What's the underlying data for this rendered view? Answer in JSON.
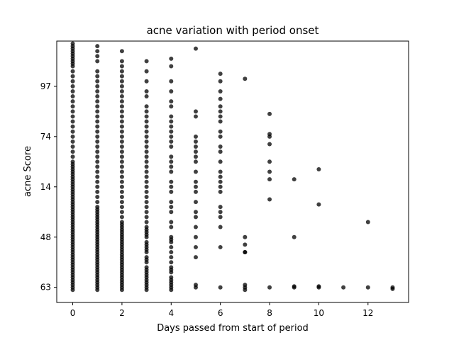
{
  "chart_data": {
    "type": "scatter",
    "title": "acne variation with period onset",
    "xlabel": "Days passed from start of period",
    "ylabel": "acne Score",
    "xlim": [
      -0.65,
      13.65
    ],
    "x_ticks": [
      0,
      2,
      4,
      6,
      8,
      10,
      12
    ],
    "x_tick_labels": [
      "0",
      "2",
      "4",
      "6",
      "8",
      "10",
      "12"
    ],
    "y_range_label_index": [
      -0.3,
      4.9
    ],
    "y_tick_labels": [
      "63",
      "48",
      "14",
      "74",
      "97"
    ],
    "y_tick_positions": [
      0,
      1,
      2,
      3,
      4
    ],
    "grid": false,
    "marker_color": "#000000",
    "marker_opacity": 0.75,
    "series": [
      {
        "x": [
          0,
          0,
          0,
          0,
          0,
          0,
          0,
          0,
          0,
          0,
          0,
          0,
          0,
          0,
          0,
          0,
          0,
          0,
          0,
          0,
          0,
          0,
          0,
          0,
          0,
          0,
          0,
          0,
          0,
          0,
          0,
          0,
          0,
          0,
          0,
          0,
          0,
          0,
          0,
          0,
          0,
          0,
          0,
          0,
          0,
          0,
          0,
          0,
          0,
          0,
          0,
          0,
          0,
          0,
          0,
          0,
          0,
          0,
          0,
          0,
          0,
          0,
          0,
          0,
          0,
          0,
          0,
          0,
          0,
          0,
          0,
          0,
          0,
          0,
          0,
          0,
          0,
          0,
          0,
          0,
          1,
          1,
          1,
          1,
          1,
          1,
          1,
          1,
          1,
          1,
          1,
          1,
          1,
          1,
          1,
          1,
          1,
          1,
          1,
          1,
          1,
          1,
          1,
          1,
          1,
          1,
          1,
          1,
          1,
          1,
          1,
          1,
          1,
          1,
          1,
          1,
          1,
          1,
          1,
          1,
          1,
          1,
          1,
          1,
          1,
          1,
          1,
          1,
          1,
          1,
          1,
          1,
          1,
          1,
          1,
          1,
          1,
          1,
          1,
          1,
          1,
          1,
          1,
          1,
          1,
          2,
          2,
          2,
          2,
          2,
          2,
          2,
          2,
          2,
          2,
          2,
          2,
          2,
          2,
          2,
          2,
          2,
          2,
          2,
          2,
          2,
          2,
          2,
          2,
          2,
          2,
          2,
          2,
          2,
          2,
          2,
          2,
          2,
          2,
          2,
          2,
          2,
          2,
          2,
          2,
          2,
          2,
          2,
          2,
          2,
          2,
          2,
          2,
          2,
          2,
          2,
          2,
          2,
          2,
          2,
          2,
          2,
          2,
          2,
          2,
          2,
          3,
          3,
          3,
          3,
          3,
          3,
          3,
          3,
          3,
          3,
          3,
          3,
          3,
          3,
          3,
          3,
          3,
          3,
          3,
          3,
          3,
          3,
          3,
          3,
          3,
          3,
          3,
          3,
          3,
          3,
          3,
          3,
          3,
          3,
          3,
          3,
          3,
          3,
          3,
          3,
          3,
          3,
          3,
          3,
          3,
          3,
          3,
          3,
          3,
          3,
          3,
          3,
          4,
          4,
          4,
          4,
          4,
          4,
          4,
          4,
          4,
          4,
          4,
          4,
          4,
          4,
          4,
          4,
          4,
          4,
          4,
          4,
          4,
          4,
          4,
          4,
          4,
          4,
          4,
          4,
          4,
          4,
          4,
          4,
          4,
          4,
          4,
          4,
          4,
          4,
          4,
          4,
          4,
          5,
          5,
          5,
          5,
          5,
          5,
          5,
          5,
          5,
          5,
          5,
          5,
          5,
          5,
          5,
          5,
          5,
          5,
          5,
          5,
          5,
          5,
          6,
          6,
          6,
          6,
          6,
          6,
          6,
          6,
          6,
          6,
          6,
          6,
          6,
          6,
          6,
          6,
          6,
          6,
          6,
          6,
          6,
          6,
          6,
          6,
          7,
          7,
          7,
          7,
          7,
          7,
          7,
          7,
          8,
          8,
          8,
          8,
          8,
          8,
          8,
          8,
          8,
          9,
          9,
          9,
          9,
          10,
          10,
          10,
          10,
          11,
          12,
          12,
          13,
          13
        ],
        "y": [
          4.85,
          4.8,
          4.75,
          4.7,
          4.65,
          4.6,
          4.55,
          4.5,
          4.45,
          4.4,
          4.3,
          4.2,
          4.1,
          4.0,
          3.9,
          3.8,
          3.7,
          3.6,
          3.5,
          3.4,
          3.3,
          3.2,
          3.1,
          3.0,
          2.9,
          2.8,
          2.7,
          2.6,
          2.5,
          2.4,
          2.3,
          2.2,
          2.1,
          2.0,
          1.9,
          1.8,
          1.7,
          1.6,
          1.5,
          1.4,
          1.3,
          1.2,
          1.1,
          1.0,
          0.9,
          0.8,
          0.7,
          0.6,
          0.5,
          0.4,
          0.3,
          0.2,
          0.1,
          0.0,
          -0.05,
          0.05,
          0.15,
          0.25,
          0.35,
          0.45,
          0.55,
          0.65,
          0.75,
          0.85,
          0.95,
          1.05,
          1.15,
          1.25,
          1.35,
          1.45,
          1.55,
          1.65,
          1.75,
          1.85,
          1.95,
          2.05,
          2.15,
          2.25,
          2.35,
          2.45,
          4.8,
          4.7,
          4.6,
          4.5,
          4.3,
          4.2,
          4.1,
          4.0,
          3.9,
          3.8,
          3.7,
          3.6,
          3.5,
          3.4,
          3.3,
          3.2,
          3.1,
          3.0,
          2.9,
          2.8,
          2.7,
          2.6,
          2.5,
          2.4,
          2.3,
          2.2,
          2.1,
          2.0,
          1.9,
          1.8,
          1.7,
          1.6,
          1.5,
          1.4,
          1.3,
          1.2,
          1.1,
          1.0,
          0.9,
          0.8,
          0.7,
          0.6,
          0.5,
          0.4,
          0.3,
          0.2,
          0.1,
          0.0,
          -0.05,
          0.05,
          0.15,
          0.25,
          0.35,
          0.45,
          0.55,
          0.65,
          0.75,
          0.85,
          0.95,
          1.05,
          1.15,
          1.25,
          1.35,
          1.45,
          1.55,
          4.7,
          4.5,
          4.4,
          4.3,
          4.2,
          4.1,
          4.0,
          3.9,
          3.8,
          3.7,
          3.6,
          3.5,
          3.4,
          3.3,
          3.2,
          3.1,
          3.0,
          2.9,
          2.8,
          2.7,
          2.6,
          2.5,
          2.4,
          2.3,
          2.2,
          2.1,
          2.0,
          1.9,
          1.8,
          1.7,
          1.6,
          1.5,
          1.4,
          1.3,
          1.2,
          1.1,
          1.0,
          0.9,
          0.8,
          0.7,
          0.6,
          0.5,
          0.4,
          0.3,
          0.2,
          0.1,
          0.0,
          -0.05,
          0.05,
          0.15,
          0.25,
          0.35,
          0.45,
          0.55,
          0.65,
          0.75,
          0.85,
          0.95,
          1.05,
          1.15,
          1.25,
          4.5,
          4.3,
          4.1,
          3.9,
          3.8,
          3.6,
          3.5,
          3.4,
          3.3,
          3.2,
          3.1,
          3.0,
          2.9,
          2.8,
          2.7,
          2.6,
          2.5,
          2.4,
          2.3,
          2.2,
          2.1,
          2.0,
          1.9,
          1.8,
          1.7,
          1.6,
          1.5,
          1.4,
          1.3,
          1.2,
          1.1,
          1.0,
          0.9,
          0.8,
          0.7,
          0.6,
          0.5,
          0.4,
          0.3,
          0.2,
          0.1,
          0.0,
          -0.05,
          0.05,
          0.15,
          0.25,
          0.35,
          0.55,
          0.75,
          0.85,
          1.05,
          1.15,
          4.55,
          4.4,
          4.1,
          3.9,
          3.7,
          3.6,
          3.4,
          3.3,
          3.2,
          3.1,
          3.0,
          2.9,
          2.8,
          2.6,
          2.5,
          2.4,
          2.3,
          2.1,
          2.0,
          1.9,
          1.7,
          1.6,
          1.5,
          1.3,
          1.2,
          1.0,
          0.9,
          0.8,
          0.7,
          0.5,
          0.4,
          0.3,
          0.2,
          0.1,
          0.0,
          -0.05,
          0.05,
          0.15,
          0.35,
          0.6,
          0.95,
          4.75,
          3.5,
          3.4,
          3.0,
          2.9,
          2.8,
          2.7,
          2.6,
          2.5,
          2.3,
          2.1,
          2.0,
          1.9,
          1.7,
          1.5,
          1.4,
          1.2,
          1.0,
          0.8,
          0.6,
          0.0,
          0.05,
          4.25,
          4.1,
          3.9,
          3.75,
          3.6,
          3.5,
          3.4,
          3.3,
          3.1,
          3.0,
          2.8,
          2.7,
          2.5,
          2.3,
          2.2,
          2.1,
          2.0,
          1.9,
          1.6,
          1.5,
          1.4,
          1.2,
          0.8,
          0.0,
          4.15,
          1.0,
          0.85,
          0.7,
          0.7,
          0.05,
          0.0,
          -0.05,
          3.45,
          3.05,
          3.0,
          2.85,
          2.5,
          2.3,
          2.15,
          1.75,
          0.0,
          2.15,
          1.0,
          0.0,
          0.02,
          2.35,
          1.65,
          0.0,
          0.02,
          0.0,
          0.0,
          1.3,
          0.0,
          -0.03
        ]
      }
    ]
  }
}
